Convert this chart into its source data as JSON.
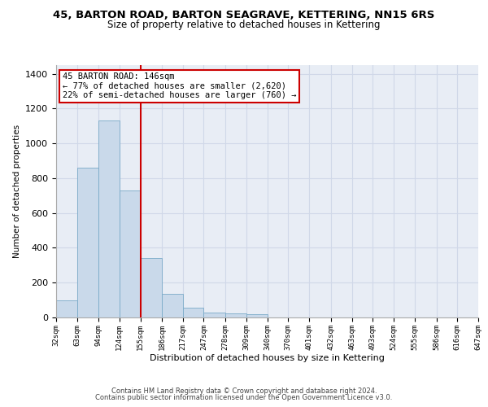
{
  "title_line1": "45, BARTON ROAD, BARTON SEAGRAVE, KETTERING, NN15 6RS",
  "title_line2": "Size of property relative to detached houses in Kettering",
  "xlabel": "Distribution of detached houses by size in Kettering",
  "ylabel": "Number of detached properties",
  "footer_line1": "Contains HM Land Registry data © Crown copyright and database right 2024.",
  "footer_line2": "Contains public sector information licensed under the Open Government Licence v3.0.",
  "annotation_line1": "45 BARTON ROAD: 146sqm",
  "annotation_line2": "← 77% of detached houses are smaller (2,620)",
  "annotation_line3": "22% of semi-detached houses are larger (760) →",
  "bin_edges": [
    32,
    63,
    94,
    124,
    155,
    186,
    217,
    247,
    278,
    309,
    340,
    370,
    401,
    432,
    463,
    493,
    524,
    555,
    586,
    616,
    647
  ],
  "bar_heights": [
    100,
    860,
    1130,
    730,
    340,
    135,
    55,
    30,
    25,
    20,
    0,
    0,
    0,
    0,
    0,
    0,
    0,
    0,
    0,
    0
  ],
  "bar_color": "#c9d9ea",
  "bar_edge_color": "#7aaac8",
  "grid_color": "#d0d8e8",
  "vline_color": "#cc0000",
  "ylim": [
    0,
    1450
  ],
  "yticks": [
    0,
    200,
    400,
    600,
    800,
    1000,
    1200,
    1400
  ],
  "axes_bg": "#e8edf5",
  "annotation_box_color": "#ffffff",
  "annotation_box_edge": "#cc0000",
  "title1_fontsize": 9.5,
  "title2_fontsize": 8.5,
  "ylabel_fontsize": 7.5,
  "xlabel_fontsize": 8.0,
  "ytick_fontsize": 8.0,
  "xtick_fontsize": 6.5,
  "annot_fontsize": 7.5,
  "footer_fontsize": 6.0
}
